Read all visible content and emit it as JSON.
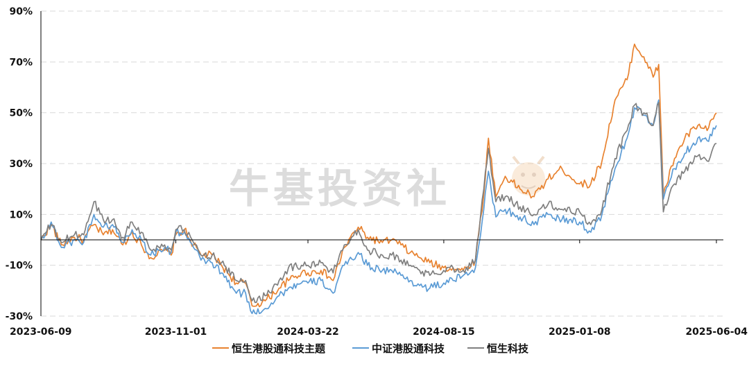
{
  "chart_data": {
    "type": "line",
    "title": "",
    "xlabel": "",
    "ylabel": "",
    "y_unit": "%",
    "ylim": [
      -30,
      90
    ],
    "y_ticks": [
      90,
      70,
      50,
      30,
      10,
      -10,
      -30
    ],
    "y_tick_labels": [
      "90%",
      "70%",
      "50%",
      "30%",
      "10%",
      "-10%",
      "-30%"
    ],
    "x_range": [
      "2023-06-09",
      "2025-06-04"
    ],
    "x_tick_labels": [
      "2023-06-09",
      "2023-11-01",
      "2024-03-22",
      "2024-08-15",
      "2025-01-08",
      "2025-06-04"
    ],
    "grid": "horizontal dashed",
    "legend_position": "bottom",
    "watermark": "牛基投资社",
    "colors": {
      "orange": "#e8822f",
      "blue": "#5b9bd5",
      "gray": "#7f7f7f"
    },
    "series": [
      {
        "name": "恒生港股通科技主题",
        "color": "#e8822f",
        "points": [
          [
            "2023-06-09",
            0
          ],
          [
            "2023-06-20",
            6
          ],
          [
            "2023-07-01",
            -2
          ],
          [
            "2023-07-15",
            1
          ],
          [
            "2023-07-25",
            0
          ],
          [
            "2023-08-05",
            6
          ],
          [
            "2023-08-15",
            2
          ],
          [
            "2023-08-25",
            4
          ],
          [
            "2023-09-05",
            -2
          ],
          [
            "2023-09-15",
            3
          ],
          [
            "2023-09-25",
            -2
          ],
          [
            "2023-10-05",
            -7
          ],
          [
            "2023-10-20",
            -4
          ],
          [
            "2023-10-27",
            -6
          ],
          [
            "2023-11-01",
            2
          ],
          [
            "2023-11-10",
            4
          ],
          [
            "2023-11-20",
            -2
          ],
          [
            "2023-11-28",
            -6
          ],
          [
            "2023-12-10",
            -6
          ],
          [
            "2023-12-20",
            -10
          ],
          [
            "2024-01-05",
            -17
          ],
          [
            "2024-01-15",
            -17
          ],
          [
            "2024-01-22",
            -26
          ],
          [
            "2024-02-05",
            -24
          ],
          [
            "2024-02-20",
            -19
          ],
          [
            "2024-03-01",
            -16
          ],
          [
            "2024-03-15",
            -13
          ],
          [
            "2024-03-22",
            -13
          ],
          [
            "2024-04-05",
            -12
          ],
          [
            "2024-04-18",
            -16
          ],
          [
            "2024-04-30",
            -3
          ],
          [
            "2024-05-15",
            5
          ],
          [
            "2024-05-25",
            1
          ],
          [
            "2024-06-10",
            -1
          ],
          [
            "2024-06-20",
            0
          ],
          [
            "2024-06-30",
            -2
          ],
          [
            "2024-07-10",
            -5
          ],
          [
            "2024-07-20",
            -7
          ],
          [
            "2024-07-31",
            -9
          ],
          [
            "2024-08-15",
            -11
          ],
          [
            "2024-08-25",
            -11
          ],
          [
            "2024-09-05",
            -12
          ],
          [
            "2024-09-18",
            -8
          ],
          [
            "2024-09-27",
            18
          ],
          [
            "2024-10-02",
            40
          ],
          [
            "2024-10-10",
            17
          ],
          [
            "2024-10-20",
            25
          ],
          [
            "2024-11-05",
            20
          ],
          [
            "2024-11-20",
            17
          ],
          [
            "2024-12-05",
            24
          ],
          [
            "2024-12-20",
            28
          ],
          [
            "2025-01-08",
            22
          ],
          [
            "2025-01-20",
            22
          ],
          [
            "2025-02-01",
            31
          ],
          [
            "2025-02-15",
            55
          ],
          [
            "2025-02-28",
            63
          ],
          [
            "2025-03-08",
            77
          ],
          [
            "2025-03-18",
            72
          ],
          [
            "2025-03-28",
            64
          ],
          [
            "2025-04-03",
            69
          ],
          [
            "2025-04-08",
            18
          ],
          [
            "2025-04-20",
            32
          ],
          [
            "2025-05-01",
            40
          ],
          [
            "2025-05-15",
            45
          ],
          [
            "2025-05-25",
            43
          ],
          [
            "2025-06-04",
            50
          ]
        ]
      },
      {
        "name": "中证港股通科技",
        "color": "#5b9bd5",
        "points": [
          [
            "2023-06-09",
            0
          ],
          [
            "2023-06-20",
            7
          ],
          [
            "2023-07-01",
            -3
          ],
          [
            "2023-07-15",
            0
          ],
          [
            "2023-07-25",
            -1
          ],
          [
            "2023-08-05",
            10
          ],
          [
            "2023-08-15",
            5
          ],
          [
            "2023-08-25",
            6
          ],
          [
            "2023-09-05",
            -1
          ],
          [
            "2023-09-15",
            4
          ],
          [
            "2023-09-25",
            0
          ],
          [
            "2023-10-05",
            -6
          ],
          [
            "2023-10-20",
            -3
          ],
          [
            "2023-10-27",
            -5
          ],
          [
            "2023-11-01",
            3
          ],
          [
            "2023-11-10",
            3
          ],
          [
            "2023-11-20",
            -3
          ],
          [
            "2023-11-28",
            -8
          ],
          [
            "2023-12-10",
            -9
          ],
          [
            "2023-12-20",
            -13
          ],
          [
            "2024-01-05",
            -21
          ],
          [
            "2024-01-15",
            -21
          ],
          [
            "2024-01-22",
            -29
          ],
          [
            "2024-02-05",
            -27
          ],
          [
            "2024-02-20",
            -22
          ],
          [
            "2024-03-01",
            -19
          ],
          [
            "2024-03-15",
            -17
          ],
          [
            "2024-03-22",
            -17
          ],
          [
            "2024-04-05",
            -16
          ],
          [
            "2024-04-18",
            -21
          ],
          [
            "2024-04-30",
            -10
          ],
          [
            "2024-05-15",
            -5
          ],
          [
            "2024-05-25",
            -10
          ],
          [
            "2024-06-10",
            -12
          ],
          [
            "2024-06-20",
            -12
          ],
          [
            "2024-06-30",
            -14
          ],
          [
            "2024-07-10",
            -16
          ],
          [
            "2024-07-20",
            -18
          ],
          [
            "2024-07-31",
            -19
          ],
          [
            "2024-08-15",
            -17
          ],
          [
            "2024-08-25",
            -16
          ],
          [
            "2024-09-05",
            -14
          ],
          [
            "2024-09-18",
            -11
          ],
          [
            "2024-09-27",
            12
          ],
          [
            "2024-10-02",
            27
          ],
          [
            "2024-10-10",
            9
          ],
          [
            "2024-10-20",
            12
          ],
          [
            "2024-11-05",
            9
          ],
          [
            "2024-11-20",
            6
          ],
          [
            "2024-12-05",
            10
          ],
          [
            "2024-12-20",
            8
          ],
          [
            "2025-01-08",
            7
          ],
          [
            "2025-01-20",
            3
          ],
          [
            "2025-02-01",
            10
          ],
          [
            "2025-02-15",
            28
          ],
          [
            "2025-02-28",
            40
          ],
          [
            "2025-03-08",
            52
          ],
          [
            "2025-03-18",
            49
          ],
          [
            "2025-03-28",
            45
          ],
          [
            "2025-04-03",
            55
          ],
          [
            "2025-04-08",
            16
          ],
          [
            "2025-04-20",
            28
          ],
          [
            "2025-05-01",
            34
          ],
          [
            "2025-05-15",
            40
          ],
          [
            "2025-05-25",
            39
          ],
          [
            "2025-06-04",
            45
          ]
        ]
      },
      {
        "name": "恒生科技",
        "color": "#7f7f7f",
        "points": [
          [
            "2023-06-09",
            0
          ],
          [
            "2023-06-20",
            6
          ],
          [
            "2023-07-01",
            -1
          ],
          [
            "2023-07-15",
            2
          ],
          [
            "2023-07-25",
            2
          ],
          [
            "2023-08-05",
            15
          ],
          [
            "2023-08-15",
            8
          ],
          [
            "2023-08-25",
            8
          ],
          [
            "2023-09-05",
            1
          ],
          [
            "2023-09-15",
            7
          ],
          [
            "2023-09-25",
            3
          ],
          [
            "2023-10-05",
            -4
          ],
          [
            "2023-10-20",
            -2
          ],
          [
            "2023-10-27",
            -4
          ],
          [
            "2023-11-01",
            4
          ],
          [
            "2023-11-10",
            4
          ],
          [
            "2023-11-20",
            -1
          ],
          [
            "2023-11-28",
            -6
          ],
          [
            "2023-12-10",
            -6
          ],
          [
            "2023-12-20",
            -9
          ],
          [
            "2024-01-05",
            -16
          ],
          [
            "2024-01-15",
            -16
          ],
          [
            "2024-01-22",
            -24
          ],
          [
            "2024-02-05",
            -22
          ],
          [
            "2024-02-20",
            -16
          ],
          [
            "2024-03-01",
            -11
          ],
          [
            "2024-03-15",
            -10
          ],
          [
            "2024-03-22",
            -10
          ],
          [
            "2024-04-05",
            -9
          ],
          [
            "2024-04-18",
            -13
          ],
          [
            "2024-04-30",
            -2
          ],
          [
            "2024-05-15",
            4
          ],
          [
            "2024-05-25",
            -4
          ],
          [
            "2024-06-10",
            -6
          ],
          [
            "2024-06-20",
            -6
          ],
          [
            "2024-06-30",
            -8
          ],
          [
            "2024-07-10",
            -10
          ],
          [
            "2024-07-20",
            -12
          ],
          [
            "2024-07-31",
            -14
          ],
          [
            "2024-08-15",
            -12
          ],
          [
            "2024-08-25",
            -11
          ],
          [
            "2024-09-05",
            -12
          ],
          [
            "2024-09-18",
            -8
          ],
          [
            "2024-09-27",
            20
          ],
          [
            "2024-10-02",
            36
          ],
          [
            "2024-10-10",
            15
          ],
          [
            "2024-10-20",
            17
          ],
          [
            "2024-11-05",
            13
          ],
          [
            "2024-11-20",
            10
          ],
          [
            "2024-12-05",
            14
          ],
          [
            "2024-12-20",
            12
          ],
          [
            "2025-01-08",
            11
          ],
          [
            "2025-01-20",
            6
          ],
          [
            "2025-02-01",
            12
          ],
          [
            "2025-02-15",
            32
          ],
          [
            "2025-02-28",
            43
          ],
          [
            "2025-03-08",
            53
          ],
          [
            "2025-03-18",
            50
          ],
          [
            "2025-03-28",
            45
          ],
          [
            "2025-04-03",
            54
          ],
          [
            "2025-04-08",
            11
          ],
          [
            "2025-04-20",
            22
          ],
          [
            "2025-05-01",
            27
          ],
          [
            "2025-05-15",
            33
          ],
          [
            "2025-05-25",
            31
          ],
          [
            "2025-06-04",
            38
          ]
        ]
      }
    ]
  }
}
